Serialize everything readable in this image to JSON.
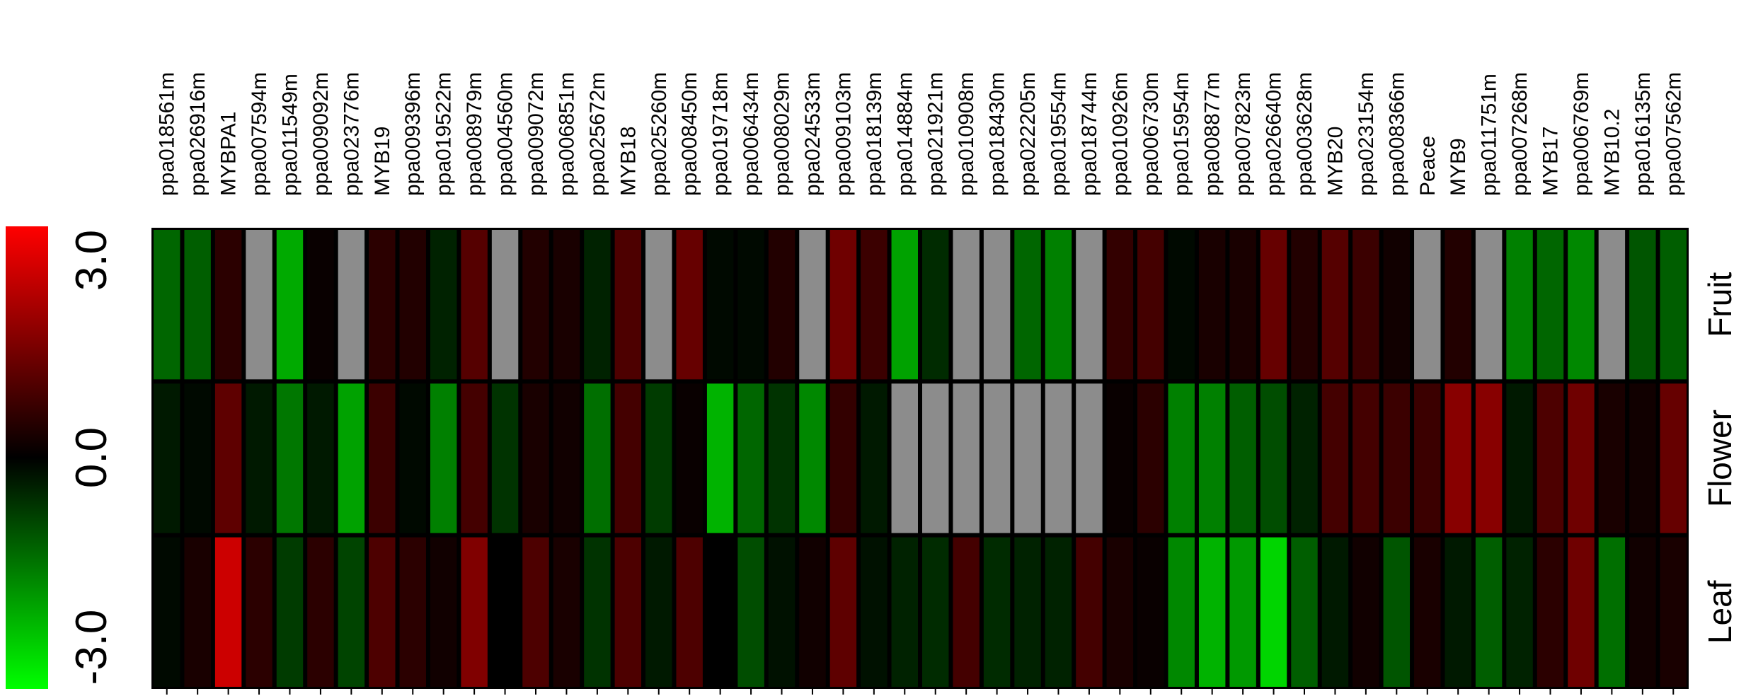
{
  "chart_data": {
    "type": "heatmap",
    "title": "",
    "xlabel": "",
    "ylabel": "",
    "columns": [
      "ppa018561m",
      "ppa026916m",
      "MYBPA1",
      "ppa007594m",
      "ppa011549m",
      "ppa009092m",
      "ppa023776m",
      "MYB19",
      "ppa009396m",
      "ppa019522m",
      "ppa008979m",
      "ppa004560m",
      "ppa009072m",
      "ppa006851m",
      "ppa025672m",
      "MYB18",
      "ppa025260m",
      "ppa008450m",
      "ppa019718m",
      "ppa006434m",
      "ppa008029m",
      "ppa024533m",
      "ppa009103m",
      "ppa018139m",
      "ppa014884m",
      "ppa021921m",
      "ppa010908m",
      "ppa018430m",
      "ppa022205m",
      "ppa019554m",
      "ppa018744m",
      "ppa010926m",
      "ppa006730m",
      "ppa015954m",
      "ppa008877m",
      "ppa007823m",
      "ppa026640m",
      "ppa003628m",
      "MYB20",
      "ppa023154m",
      "ppa008366m",
      "Peace",
      "MYB9",
      "ppa011751m",
      "ppa007268m",
      "MYB17",
      "ppa006769m",
      "MYB10.2",
      "ppa016135m",
      "ppa007562m"
    ],
    "rows": [
      "Fruit",
      "Flower",
      "Leaf"
    ],
    "missing_color": "#8c8c8c",
    "color_scale": {
      "min": -3.0,
      "mid": 0.0,
      "max": 3.0,
      "min_color": "#00ff00",
      "mid_color": "#000000",
      "max_color": "#ff0000",
      "tick_labels": [
        "3.0",
        "0.0",
        "-3.0"
      ]
    },
    "values": [
      [
        -1.2,
        -1.1,
        0.5,
        null,
        -2.0,
        0.1,
        null,
        0.5,
        0.4,
        -0.4,
        1.0,
        null,
        0.4,
        0.3,
        -0.4,
        0.9,
        null,
        1.2,
        -0.1,
        -0.1,
        0.4,
        null,
        1.3,
        0.7,
        -1.9,
        -0.5,
        null,
        null,
        -1.2,
        -1.5,
        null,
        0.6,
        0.8,
        -0.1,
        0.3,
        0.3,
        1.2,
        0.4,
        1.0,
        0.7,
        0.2,
        null,
        0.4,
        null,
        -1.5,
        -1.2,
        -1.6,
        null,
        -1.0,
        -1.1
      ],
      [
        -0.3,
        -0.1,
        1.1,
        -0.3,
        -1.4,
        -0.3,
        -1.9,
        0.7,
        -0.1,
        -1.5,
        0.8,
        -0.6,
        0.3,
        0.2,
        -1.3,
        0.8,
        -0.7,
        0.1,
        -2.1,
        -1.2,
        -0.6,
        -1.6,
        0.6,
        -0.3,
        null,
        null,
        null,
        null,
        null,
        null,
        null,
        0.1,
        0.5,
        -1.5,
        -1.5,
        -1.1,
        -0.9,
        -0.4,
        0.8,
        0.8,
        0.7,
        0.7,
        1.6,
        1.6,
        -0.3,
        0.9,
        1.3,
        0.3,
        0.2,
        1.2
      ],
      [
        -0.1,
        0.3,
        2.4,
        0.5,
        -0.7,
        0.5,
        -0.8,
        0.9,
        0.5,
        0.2,
        1.5,
        0.0,
        0.9,
        0.3,
        -0.6,
        0.9,
        -0.3,
        0.9,
        0.0,
        -0.9,
        -0.2,
        0.2,
        1.1,
        -0.2,
        -0.4,
        -0.5,
        0.8,
        -0.5,
        -0.4,
        -0.4,
        0.8,
        0.3,
        0.1,
        -1.6,
        -2.1,
        -1.8,
        -2.5,
        -1.1,
        -0.3,
        0.2,
        -1.0,
        0.3,
        -0.3,
        -1.1,
        -0.4,
        0.5,
        1.3,
        -1.3,
        0.2,
        0.3
      ]
    ]
  }
}
